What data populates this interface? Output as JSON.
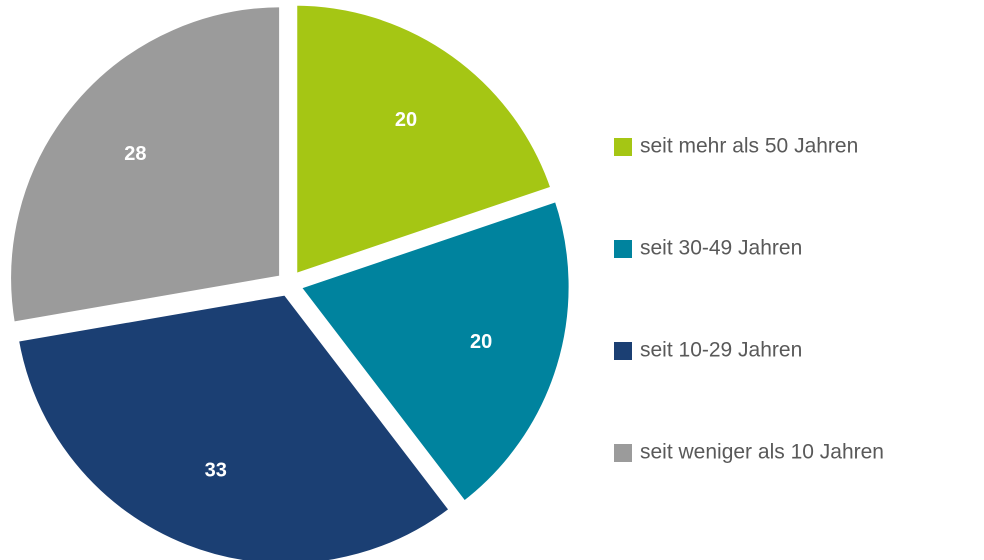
{
  "chart_data": {
    "type": "pie",
    "categories": [
      "seit mehr als 50 Jahren",
      "seit 30-49 Jahren",
      "seit 10-29 Jahren",
      "seit weniger als 10 Jahren"
    ],
    "values": [
      20,
      20,
      33,
      28
    ],
    "colors": [
      "#a5c614",
      "#00839e",
      "#1b3f73",
      "#9b9b9b"
    ],
    "legend": "right"
  }
}
